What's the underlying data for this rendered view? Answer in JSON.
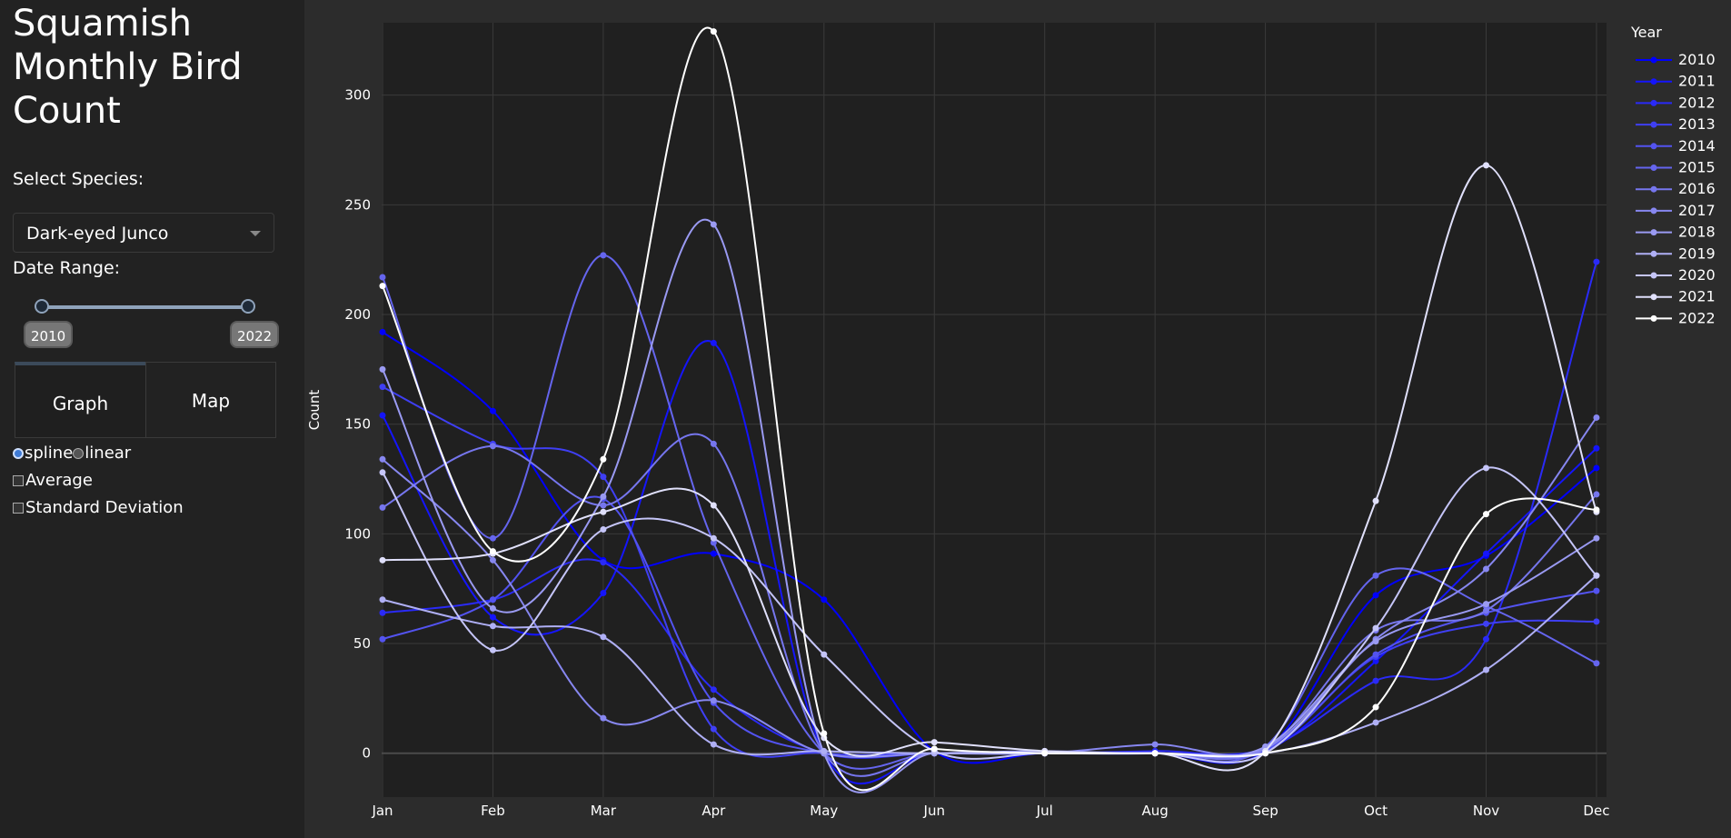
{
  "sidebar": {
    "title": "Squamish Monthly Bird Count",
    "species_label": "Select Species:",
    "species_value": "Dark-eyed Junco",
    "date_range_label": "Date Range:",
    "range_start": "2010",
    "range_end": "2022",
    "tabs": [
      {
        "label": "Graph",
        "selected": true
      },
      {
        "label": "Map",
        "selected": false
      }
    ],
    "interp_options": [
      {
        "label": "spline",
        "checked": true
      },
      {
        "label": "linear",
        "checked": false
      }
    ],
    "average_label": "Average",
    "average_checked": false,
    "std_label": "Standard Deviation",
    "std_checked": false
  },
  "chart_data": {
    "type": "line",
    "title": "",
    "xlabel": "",
    "ylabel": "Count",
    "categories": [
      "Jan",
      "Feb",
      "Mar",
      "Apr",
      "May",
      "Jun",
      "Jul",
      "Aug",
      "Sep",
      "Oct",
      "Nov",
      "Dec"
    ],
    "ylim": [
      -20,
      333
    ],
    "yticks": [
      0,
      50,
      100,
      150,
      200,
      250,
      300
    ],
    "grid": true,
    "line_shape": "spline",
    "legend_title": "Year",
    "legend_position": "right",
    "series": [
      {
        "name": "2010",
        "color": "#0000ff",
        "values": [
          192,
          156,
          88,
          91,
          70,
          1,
          0,
          0,
          1,
          72,
          90,
          130
        ]
      },
      {
        "name": "2011",
        "color": "#1515fb",
        "values": [
          154,
          62,
          73,
          187,
          0,
          0,
          0,
          0,
          1,
          42,
          91,
          139
        ]
      },
      {
        "name": "2012",
        "color": "#2a2af7",
        "values": [
          64,
          70,
          87,
          29,
          0,
          0,
          0,
          1,
          2,
          33,
          52,
          224
        ]
      },
      {
        "name": "2013",
        "color": "#3f3ff3",
        "values": [
          167,
          141,
          126,
          11,
          0,
          0,
          0,
          0,
          2,
          44,
          59,
          60
        ]
      },
      {
        "name": "2014",
        "color": "#5353f0",
        "values": [
          52,
          70,
          116,
          23,
          0,
          0,
          0,
          0,
          1,
          45,
          64,
          74
        ]
      },
      {
        "name": "2015",
        "color": "#6565ee",
        "values": [
          217,
          98,
          227,
          96,
          0,
          0,
          0,
          0,
          3,
          81,
          67,
          41
        ]
      },
      {
        "name": "2016",
        "color": "#7676ee",
        "values": [
          112,
          140,
          113,
          141,
          0,
          0,
          0,
          0,
          2,
          56,
          65,
          118
        ]
      },
      {
        "name": "2017",
        "color": "#8787f0",
        "values": [
          134,
          88,
          16,
          24,
          0,
          0,
          0,
          4,
          2,
          52,
          84,
          153
        ]
      },
      {
        "name": "2018",
        "color": "#9a9af2",
        "values": [
          175,
          66,
          117,
          241,
          0,
          0,
          1,
          0,
          3,
          51,
          68,
          98
        ]
      },
      {
        "name": "2019",
        "color": "#afaff5",
        "values": [
          70,
          58,
          53,
          4,
          1,
          0,
          0,
          0,
          0,
          14,
          38,
          81
        ]
      },
      {
        "name": "2020",
        "color": "#c5c5f8",
        "values": [
          128,
          47,
          102,
          98,
          45,
          1,
          0,
          0,
          0,
          57,
          130,
          81
        ]
      },
      {
        "name": "2021",
        "color": "#e0e0fb",
        "values": [
          88,
          91,
          110,
          113,
          7,
          5,
          1,
          0,
          1,
          115,
          268,
          110
        ]
      },
      {
        "name": "2022",
        "color": "#ffffff",
        "values": [
          213,
          92,
          134,
          329,
          9,
          2,
          0,
          0,
          0,
          21,
          109,
          111
        ]
      }
    ]
  }
}
